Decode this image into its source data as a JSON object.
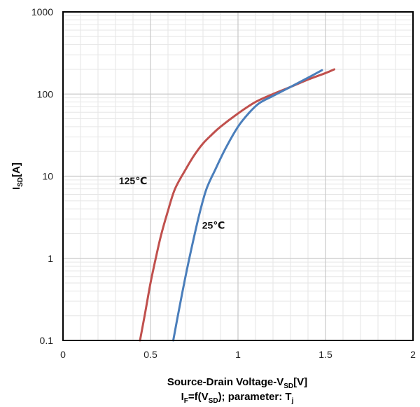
{
  "chart_data": {
    "type": "line",
    "title": "",
    "xlabel": {
      "main": "Source-Drain Voltage-V",
      "sub": "SD",
      "unit": "[V]"
    },
    "caption": {
      "p1": "I",
      "p1_sub": "F",
      "p2": "=f(V",
      "p2_sub": "SD",
      "p3": ");  parameter: T",
      "p3_sub": "j"
    },
    "ylabel": {
      "main": "I",
      "sub": "SD",
      "unit": "[A]"
    },
    "xlim": [
      0,
      2
    ],
    "ylim": [
      0.1,
      1000
    ],
    "yscale": "log",
    "grid": true,
    "xticks": [
      {
        "value": 0,
        "label": "0"
      },
      {
        "value": 0.5,
        "label": "0.5"
      },
      {
        "value": 1,
        "label": "1"
      },
      {
        "value": 1.5,
        "label": "1.5"
      },
      {
        "value": 2,
        "label": "2"
      }
    ],
    "yticks": [
      {
        "value": 0.1,
        "label": "0.1"
      },
      {
        "value": 1,
        "label": "1"
      },
      {
        "value": 10,
        "label": "10"
      },
      {
        "value": 100,
        "label": "100"
      },
      {
        "value": 1000,
        "label": "1000"
      }
    ],
    "series": [
      {
        "name": "125℃",
        "color": "#c0504d",
        "label_pos": {
          "x": 0.4,
          "y": 8
        },
        "points": [
          [
            0.44,
            0.1
          ],
          [
            0.47,
            0.22
          ],
          [
            0.5,
            0.5
          ],
          [
            0.53,
            1.0
          ],
          [
            0.56,
            1.9
          ],
          [
            0.6,
            3.8
          ],
          [
            0.64,
            7.0
          ],
          [
            0.7,
            12
          ],
          [
            0.75,
            18
          ],
          [
            0.8,
            25
          ],
          [
            0.85,
            32
          ],
          [
            0.9,
            40
          ],
          [
            1.0,
            58
          ],
          [
            1.1,
            80
          ],
          [
            1.2,
            100
          ],
          [
            1.3,
            122
          ],
          [
            1.4,
            150
          ],
          [
            1.5,
            180
          ],
          [
            1.55,
            200
          ]
        ]
      },
      {
        "name": "25℃",
        "color": "#4a7ebb",
        "label_pos": {
          "x": 0.86,
          "y": 2.3
        },
        "points": [
          [
            0.63,
            0.1
          ],
          [
            0.66,
            0.22
          ],
          [
            0.7,
            0.6
          ],
          [
            0.74,
            1.5
          ],
          [
            0.78,
            3.5
          ],
          [
            0.82,
            7.0
          ],
          [
            0.87,
            12
          ],
          [
            0.93,
            22
          ],
          [
            1.0,
            40
          ],
          [
            1.06,
            58
          ],
          [
            1.12,
            77
          ],
          [
            1.2,
            95
          ],
          [
            1.3,
            122
          ],
          [
            1.4,
            158
          ],
          [
            1.48,
            195
          ]
        ]
      }
    ]
  }
}
